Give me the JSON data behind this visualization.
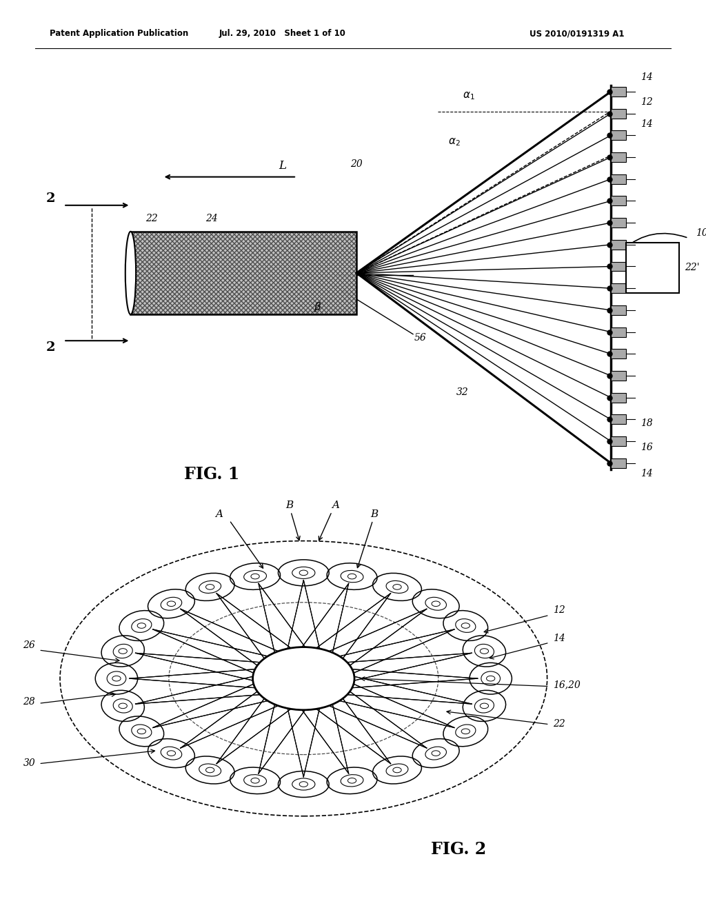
{
  "header_left": "Patent Application Publication",
  "header_mid": "Jul. 29, 2010   Sheet 1 of 10",
  "header_right": "US 2010/0191319 A1",
  "fig1_caption": "FIG. 1",
  "fig2_caption": "FIG. 2",
  "bg_color": "#ffffff",
  "line_color": "#000000"
}
